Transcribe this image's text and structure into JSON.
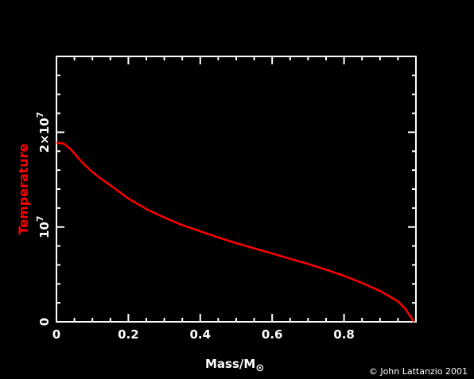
{
  "chart_data": {
    "type": "line",
    "xlabel": "Mass/M",
    "xlabel_symbol": "⊙",
    "ylabel": "Temperature",
    "xlim": [
      0,
      1.0
    ],
    "ylim": [
      0,
      28000000
    ],
    "x_ticks": [
      {
        "value": 0,
        "label": "0"
      },
      {
        "value": 0.2,
        "label": "0.2"
      },
      {
        "value": 0.4,
        "label": "0.4"
      },
      {
        "value": 0.6,
        "label": "0.6"
      },
      {
        "value": 0.8,
        "label": "0.8"
      }
    ],
    "y_ticks": [
      {
        "value": 0,
        "base": "0",
        "exp": ""
      },
      {
        "value": 10000000,
        "base": "10",
        "exp": "7"
      },
      {
        "value": 20000000,
        "base": "2×10",
        "exp": "7"
      }
    ],
    "series": [
      {
        "color": "#ff0000",
        "x": [
          0.0,
          0.02,
          0.04,
          0.06,
          0.08,
          0.1,
          0.12,
          0.15,
          0.2,
          0.25,
          0.3,
          0.35,
          0.4,
          0.45,
          0.5,
          0.55,
          0.6,
          0.65,
          0.7,
          0.75,
          0.8,
          0.85,
          0.9,
          0.93,
          0.95,
          0.97,
          0.98,
          0.99,
          0.995
        ],
        "y": [
          18900000,
          18800000,
          18200000,
          17300000,
          16500000,
          15800000,
          15200000,
          14400000,
          13000000,
          11900000,
          11000000,
          10200000,
          9550000,
          8900000,
          8300000,
          7750000,
          7200000,
          6650000,
          6100000,
          5500000,
          4850000,
          4100000,
          3250000,
          2600000,
          2150000,
          1400000,
          800000,
          250000,
          0
        ]
      }
    ]
  },
  "credit": "© John Lattanzio 2001",
  "colors": {
    "background": "#000000",
    "axes": "#ffffff",
    "line": "#ff0000",
    "ylabel": "#ff0000"
  }
}
